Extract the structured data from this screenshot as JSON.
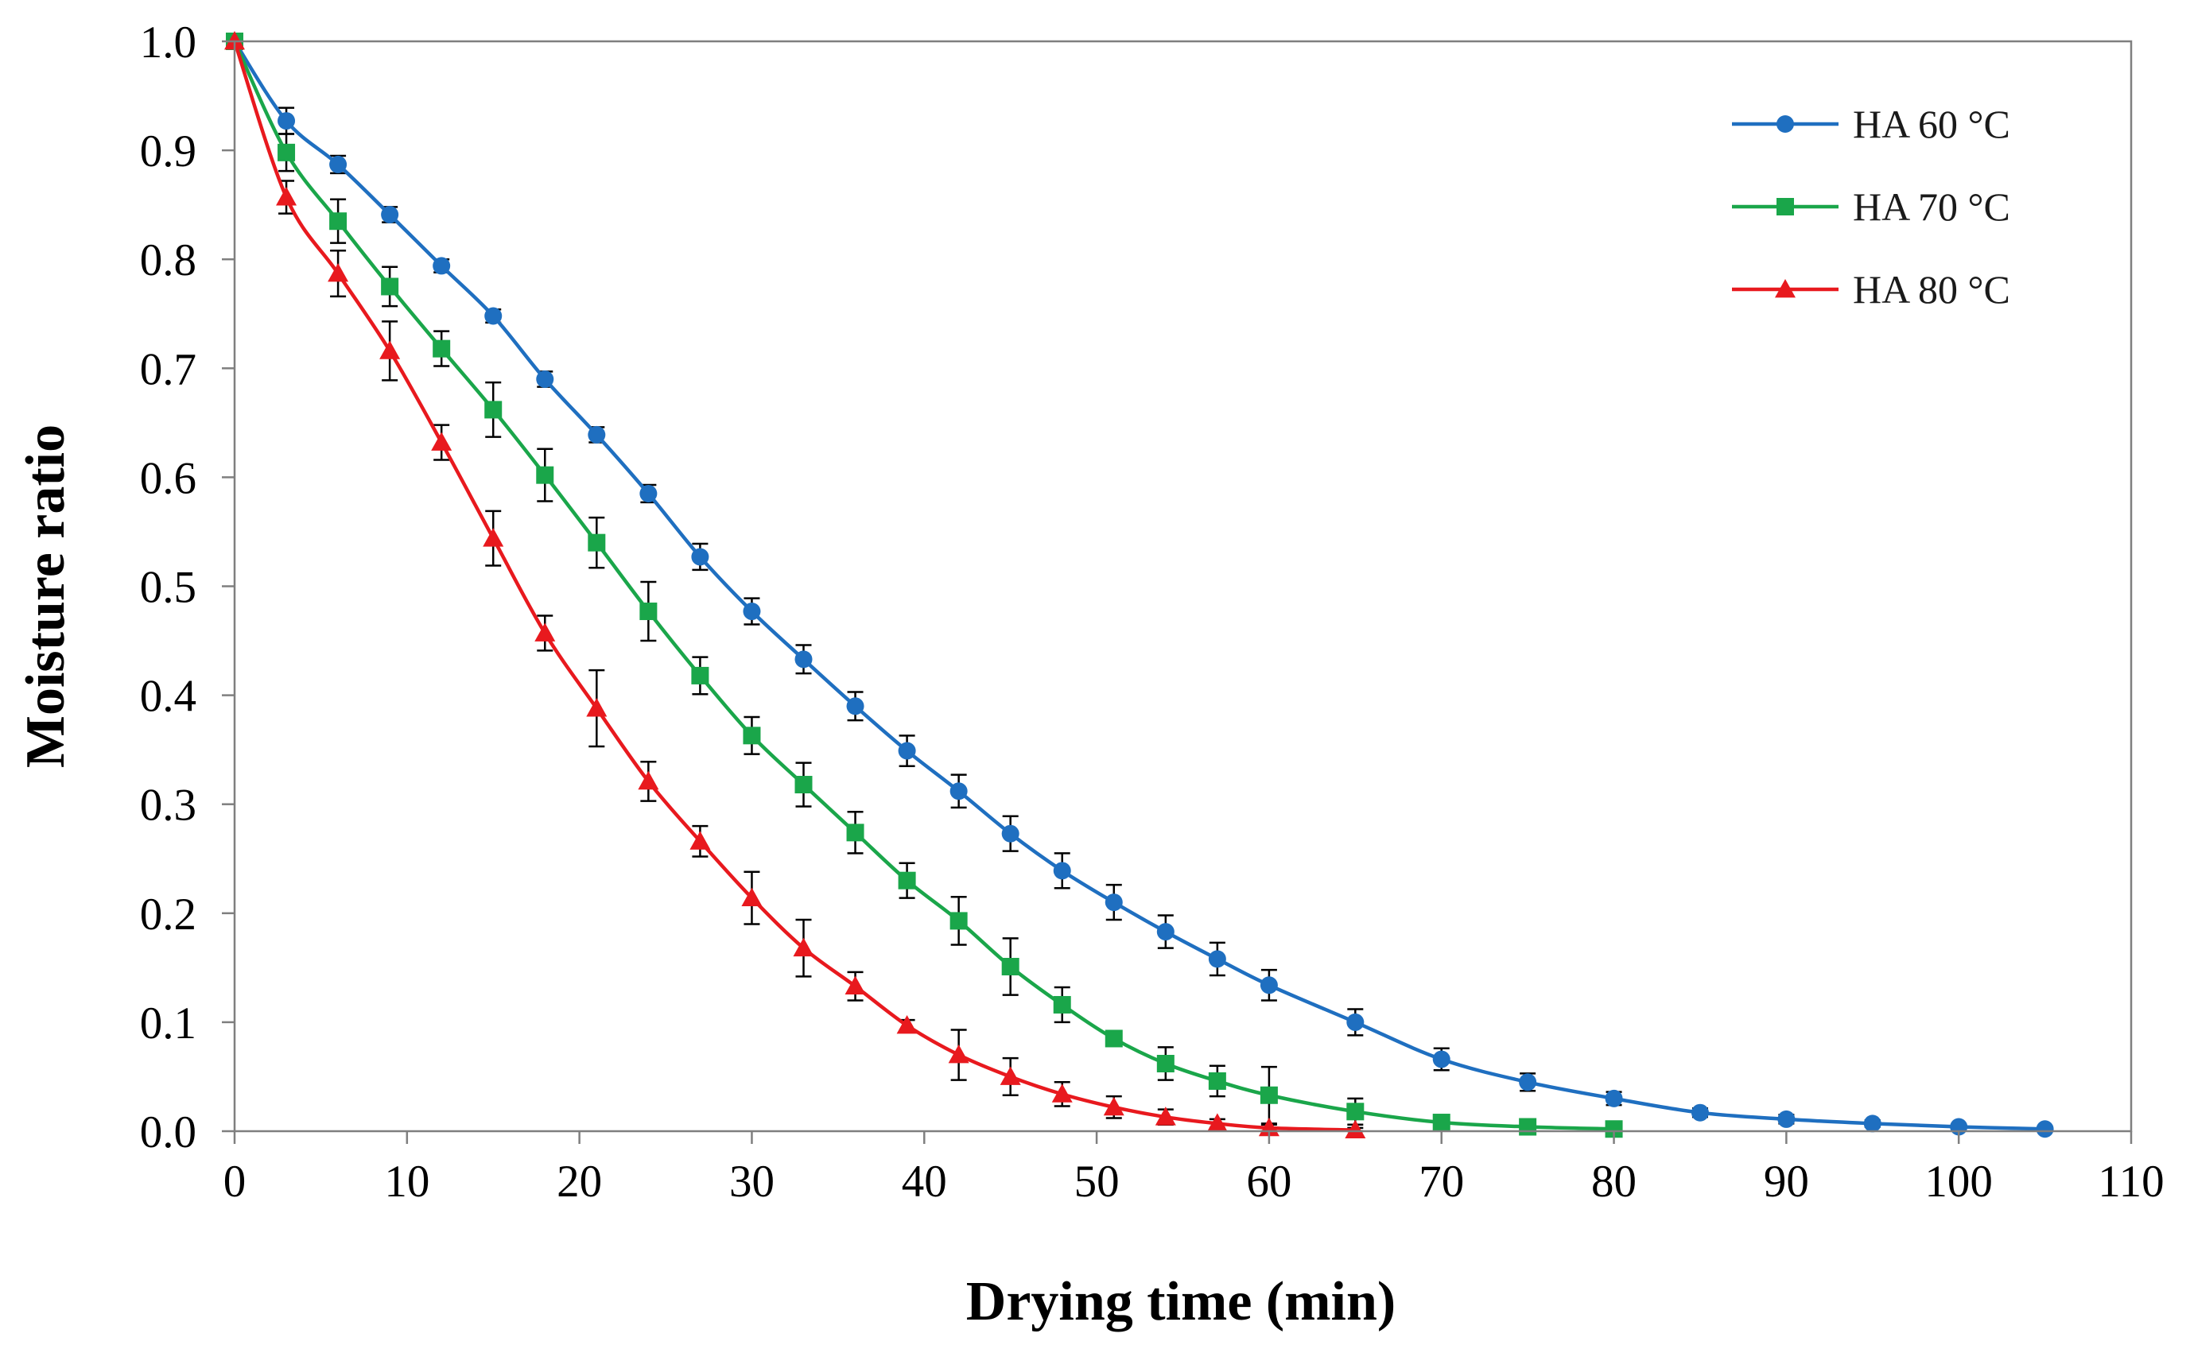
{
  "chart_data": {
    "type": "line",
    "title": "",
    "xlabel": "Drying time (min)",
    "ylabel": "Moisture ratio",
    "xlim": [
      0,
      110
    ],
    "ylim": [
      0,
      1.0
    ],
    "x_ticks": [
      0,
      10,
      20,
      30,
      40,
      50,
      60,
      70,
      80,
      90,
      100,
      110
    ],
    "x_tick_labels": [
      "0",
      "10",
      "20",
      "30",
      "40",
      "50",
      "60",
      "70",
      "80",
      "90",
      "100",
      "110"
    ],
    "y_ticks": [
      0,
      0.1,
      0.2,
      0.3,
      0.4,
      0.5,
      0.6,
      0.7,
      0.8,
      0.9,
      1.0
    ],
    "y_tick_labels": [
      "0.0",
      "0.1",
      "0.2",
      "0.3",
      "0.4",
      "0.5",
      "0.6",
      "0.7",
      "0.8",
      "0.9",
      "1.0"
    ],
    "grid": false,
    "legend_position": "top-right",
    "series": [
      {
        "name": "HA 60 °C",
        "color": "#1f6fc0",
        "marker": "circle",
        "x": [
          0,
          3,
          6,
          9,
          12,
          15,
          18,
          21,
          24,
          27,
          30,
          33,
          36,
          39,
          42,
          45,
          48,
          51,
          54,
          57,
          60,
          65,
          70,
          75,
          80,
          85,
          90,
          95,
          100,
          105
        ],
        "y": [
          1.0,
          0.927,
          0.887,
          0.841,
          0.794,
          0.748,
          0.69,
          0.639,
          0.585,
          0.527,
          0.477,
          0.433,
          0.39,
          0.349,
          0.312,
          0.273,
          0.239,
          0.21,
          0.183,
          0.158,
          0.134,
          0.1,
          0.066,
          0.045,
          0.03,
          0.017,
          0.011,
          0.007,
          0.004,
          0.002
        ],
        "err": [
          0,
          0.012,
          0.008,
          0.007,
          0.006,
          0.006,
          0.007,
          0.007,
          0.008,
          0.012,
          0.012,
          0.013,
          0.013,
          0.014,
          0.015,
          0.016,
          0.016,
          0.016,
          0.015,
          0.015,
          0.014,
          0.012,
          0.01,
          0.008,
          0.006,
          0.004,
          0.004,
          0.003,
          0.002,
          0.002
        ]
      },
      {
        "name": "HA 70 °C",
        "color": "#1aa64a",
        "marker": "square",
        "x": [
          0,
          3,
          6,
          9,
          12,
          15,
          18,
          21,
          24,
          27,
          30,
          33,
          36,
          39,
          42,
          45,
          48,
          51,
          54,
          57,
          60,
          65,
          70,
          75,
          80
        ],
        "y": [
          1.0,
          0.898,
          0.835,
          0.775,
          0.718,
          0.662,
          0.602,
          0.54,
          0.477,
          0.418,
          0.363,
          0.318,
          0.274,
          0.23,
          0.193,
          0.151,
          0.116,
          0.085,
          0.062,
          0.046,
          0.033,
          0.018,
          0.008,
          0.004,
          0.002
        ],
        "err": [
          0,
          0.017,
          0.02,
          0.018,
          0.016,
          0.025,
          0.024,
          0.023,
          0.027,
          0.017,
          0.017,
          0.02,
          0.019,
          0.016,
          0.022,
          0.026,
          0.016,
          0.006,
          0.015,
          0.014,
          0.026,
          0.012,
          0.005,
          0.003,
          0.002
        ]
      },
      {
        "name": "HA 80 °C",
        "color": "#e8191e",
        "marker": "triangle",
        "x": [
          0,
          3,
          6,
          9,
          12,
          15,
          18,
          21,
          24,
          27,
          30,
          33,
          36,
          39,
          42,
          45,
          48,
          51,
          54,
          57,
          60,
          65
        ],
        "y": [
          1.0,
          0.857,
          0.787,
          0.716,
          0.632,
          0.544,
          0.457,
          0.388,
          0.321,
          0.266,
          0.214,
          0.168,
          0.133,
          0.097,
          0.07,
          0.05,
          0.034,
          0.022,
          0.013,
          0.007,
          0.003,
          0.001
        ],
        "err": [
          0,
          0.015,
          0.021,
          0.027,
          0.016,
          0.025,
          0.016,
          0.035,
          0.018,
          0.014,
          0.024,
          0.026,
          0.013,
          0.005,
          0.023,
          0.017,
          0.011,
          0.01,
          0.007,
          0.004,
          0.003,
          0.002
        ]
      }
    ]
  }
}
